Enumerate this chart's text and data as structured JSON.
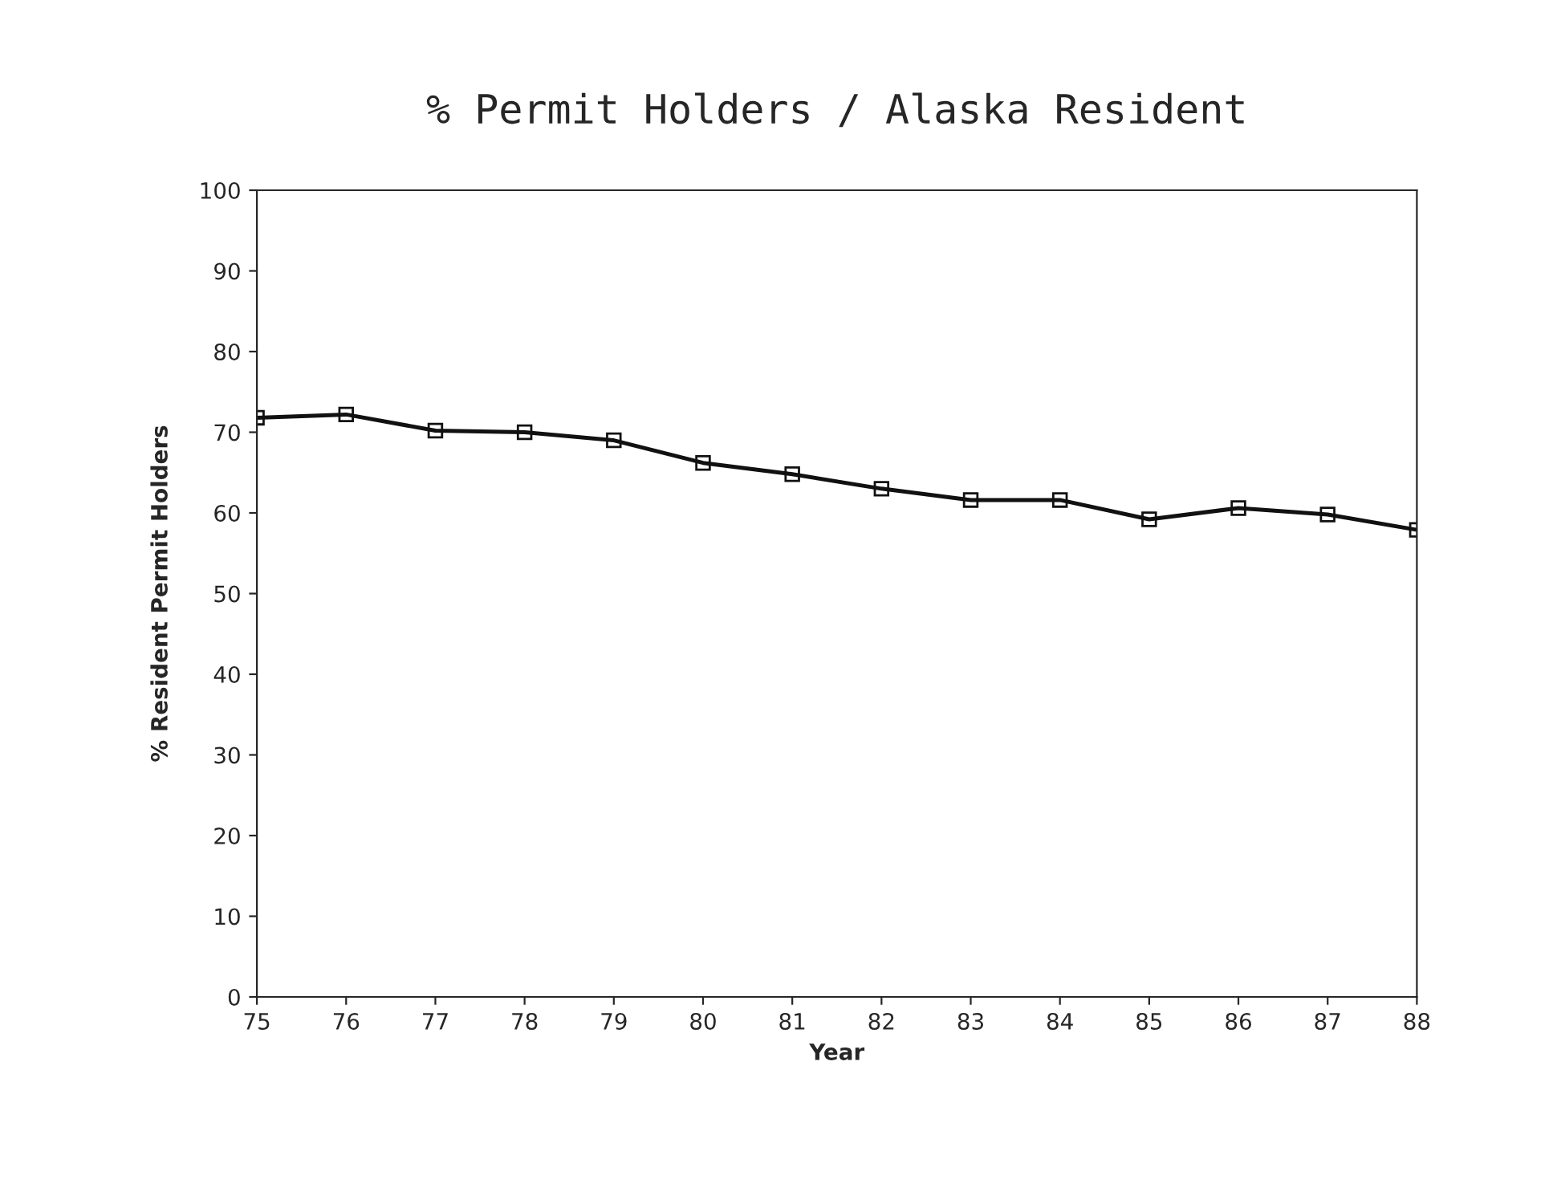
{
  "chart_data": {
    "type": "line",
    "title": "% Permit Holders / Alaska Resident",
    "xlabel": "Year",
    "ylabel": "% Resident Permit Holders",
    "x": [
      75,
      76,
      77,
      78,
      79,
      80,
      81,
      82,
      83,
      84,
      85,
      86,
      87,
      88
    ],
    "series": [
      {
        "color": "#111111",
        "values": [
          71.8,
          72.2,
          70.2,
          70.0,
          69.0,
          66.2,
          64.8,
          63.0,
          61.6,
          61.6,
          59.2,
          60.6,
          59.8,
          57.9
        ]
      }
    ],
    "xlim": [
      75,
      88
    ],
    "xticks": [
      75,
      76,
      77,
      78,
      79,
      80,
      81,
      82,
      83,
      84,
      85,
      86,
      87,
      88
    ],
    "ylim": [
      0,
      100
    ],
    "yticks": [
      0,
      10,
      20,
      30,
      40,
      50,
      60,
      70,
      80,
      90,
      100
    ],
    "marker": "square",
    "line_style": "solid",
    "grid": false,
    "legend": false
  }
}
